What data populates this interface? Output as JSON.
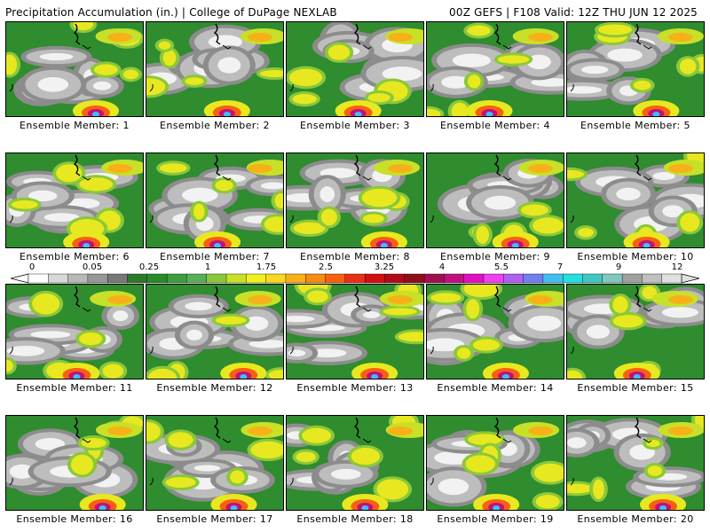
{
  "header": {
    "title": "Precipitation Accumulation (in.) | College of DuPage NEXLAB",
    "run_info": "00Z GEFS | F108 Valid: 12Z THU JUN 12 2025"
  },
  "caption_prefix": "Ensemble Member:",
  "members": [
    {
      "label": "Ensemble Member: 1"
    },
    {
      "label": "Ensemble Member: 2"
    },
    {
      "label": "Ensemble Member: 3"
    },
    {
      "label": "Ensemble Member: 4"
    },
    {
      "label": "Ensemble Member: 5"
    },
    {
      "label": "Ensemble Member: 6"
    },
    {
      "label": "Ensemble Member: 7"
    },
    {
      "label": "Ensemble Member: 8"
    },
    {
      "label": "Ensemble Member: 9"
    },
    {
      "label": "Ensemble Member: 10"
    },
    {
      "label": "Ensemble Member: 11"
    },
    {
      "label": "Ensemble Member: 12"
    },
    {
      "label": "Ensemble Member: 13"
    },
    {
      "label": "Ensemble Member: 14"
    },
    {
      "label": "Ensemble Member: 15"
    },
    {
      "label": "Ensemble Member: 16"
    },
    {
      "label": "Ensemble Member: 17"
    },
    {
      "label": "Ensemble Member: 18"
    },
    {
      "label": "Ensemble Member: 19"
    },
    {
      "label": "Ensemble Member: 20"
    }
  ],
  "colorbar": {
    "labels": [
      "0",
      "0.05",
      "0.25",
      "1",
      "1.75",
      "2.5",
      "3.25",
      "4",
      "5.5",
      "7",
      "9",
      "12"
    ],
    "colors": [
      "#ffffff",
      "#d8d8d8",
      "#b8b8b8",
      "#989898",
      "#787878",
      "#2a7a2a",
      "#2a8a2a",
      "#3c9e3c",
      "#58b058",
      "#8ac83a",
      "#c8e028",
      "#f0f020",
      "#f8d820",
      "#f8b018",
      "#f88c10",
      "#f86010",
      "#e83018",
      "#d01010",
      "#b00c18",
      "#901018",
      "#a01050",
      "#c01080",
      "#e010c0",
      "#f040f0",
      "#b060f0",
      "#7080f0",
      "#40c0f0",
      "#20e0e0",
      "#40c8c0",
      "#80c8c0",
      "#a0a0a0",
      "#c0c0c0",
      "#e0e0e0"
    ]
  }
}
